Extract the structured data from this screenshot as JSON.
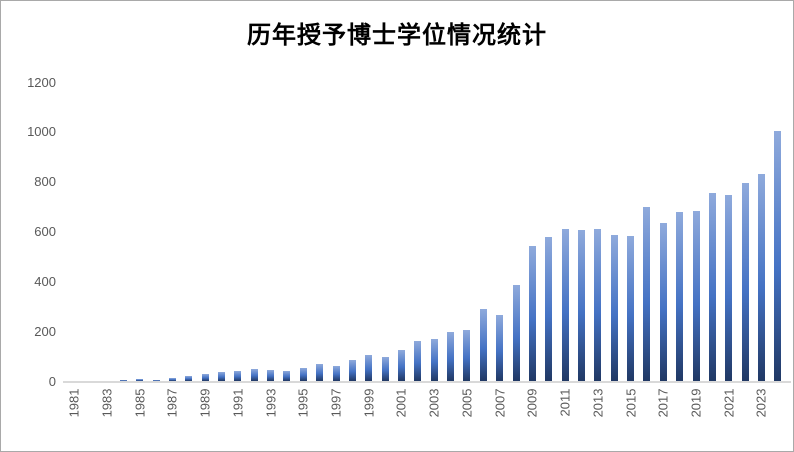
{
  "chart_data": {
    "type": "bar",
    "title": "历年授予博士学位情况统计",
    "xlabel": "",
    "ylabel": "",
    "categories": [
      "1981",
      "1982",
      "1983",
      "1984",
      "1985",
      "1986",
      "1987",
      "1988",
      "1989",
      "1990",
      "1991",
      "1992",
      "1993",
      "1994",
      "1995",
      "1996",
      "1997",
      "1998",
      "1999",
      "2000",
      "2001",
      "2002",
      "2003",
      "2004",
      "2005",
      "2006",
      "2007",
      "2008",
      "2009",
      "2010",
      "2011",
      "2012",
      "2013",
      "2014",
      "2015",
      "2016",
      "2017",
      "2018",
      "2019",
      "2020",
      "2021",
      "2022",
      "2023",
      "2024"
    ],
    "values": [
      0,
      0,
      0,
      6,
      10,
      6,
      14,
      21,
      30,
      36,
      40,
      47,
      44,
      40,
      54,
      68,
      62,
      86,
      104,
      96,
      123,
      160,
      167,
      195,
      205,
      290,
      264,
      386,
      541,
      576,
      612,
      608,
      612,
      585,
      580,
      698,
      634,
      678,
      684,
      756,
      745,
      793,
      831,
      1002
    ],
    "x_tick_labels": [
      "1981",
      "1983",
      "1985",
      "1987",
      "1989",
      "1991",
      "1993",
      "1995",
      "1997",
      "1999",
      "2001",
      "2003",
      "2005",
      "2007",
      "2009",
      "2011",
      "2013",
      "2015",
      "2017",
      "2019",
      "2021",
      "2023"
    ],
    "y_ticks": [
      0,
      200,
      400,
      600,
      800,
      1000,
      1200
    ],
    "ylim": [
      0,
      1200
    ],
    "grid": false,
    "legend": "none",
    "x_label_rotation_deg": -90,
    "colors": {
      "bar_gradient_top": "#8faadc",
      "bar_gradient_mid": "#4472c4",
      "bar_gradient_bottom": "#203864",
      "axis_line": "#d9d9d9",
      "tick_label": "#595959",
      "title": "#000000",
      "background": "#ffffff",
      "frame_border": "#a9a9a9"
    }
  }
}
